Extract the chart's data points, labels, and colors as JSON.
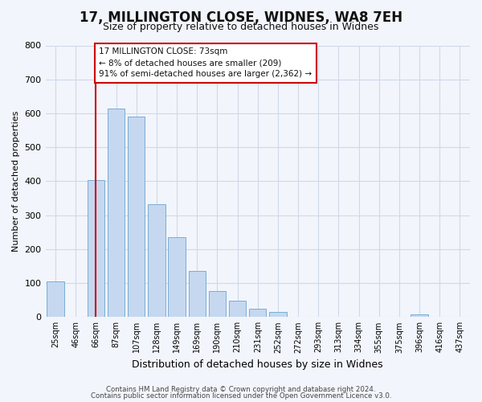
{
  "title": "17, MILLINGTON CLOSE, WIDNES, WA8 7EH",
  "subtitle": "Size of property relative to detached houses in Widnes",
  "xlabel": "Distribution of detached houses by size in Widnes",
  "ylabel": "Number of detached properties",
  "bar_labels": [
    "25sqm",
    "46sqm",
    "66sqm",
    "87sqm",
    "107sqm",
    "128sqm",
    "149sqm",
    "169sqm",
    "190sqm",
    "210sqm",
    "231sqm",
    "252sqm",
    "272sqm",
    "293sqm",
    "313sqm",
    "334sqm",
    "355sqm",
    "375sqm",
    "396sqm",
    "416sqm",
    "437sqm"
  ],
  "bar_values": [
    106,
    0,
    404,
    614,
    590,
    332,
    236,
    136,
    76,
    48,
    25,
    16,
    0,
    0,
    0,
    0,
    0,
    0,
    8,
    0,
    0
  ],
  "bar_color": "#c5d8f0",
  "bar_edge_color": "#7aadd4",
  "ylim": [
    0,
    800
  ],
  "yticks": [
    0,
    100,
    200,
    300,
    400,
    500,
    600,
    700,
    800
  ],
  "vline_x": 2,
  "vline_color": "#cc0000",
  "annotation_text": "17 MILLINGTON CLOSE: 73sqm\n← 8% of detached houses are smaller (209)\n91% of semi-detached houses are larger (2,362) →",
  "annotation_box_color": "#ffffff",
  "annotation_box_edge": "#cc0000",
  "footer1": "Contains HM Land Registry data © Crown copyright and database right 2024.",
  "footer2": "Contains public sector information licensed under the Open Government Licence v3.0.",
  "bg_color": "#f2f5fb",
  "plot_bg_color": "#f2f5fb",
  "grid_color": "#d0d8e8",
  "title_fontsize": 12,
  "subtitle_fontsize": 9
}
